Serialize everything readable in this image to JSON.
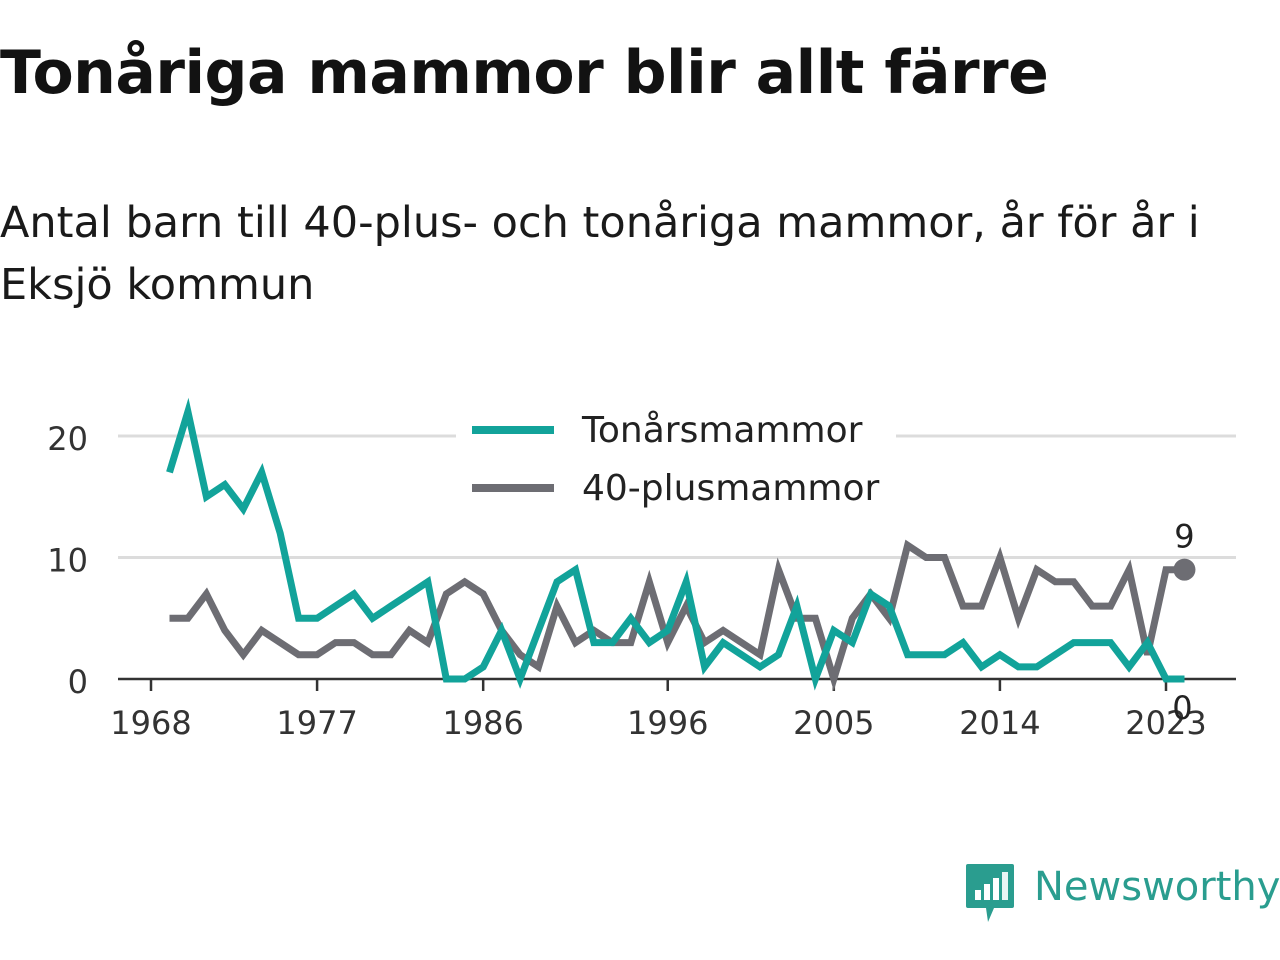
{
  "header": {
    "title": "Tonåriga mammor blir allt färre",
    "subtitle": "Antal barn till 40-plus- och tonåriga mammor, år för år i Eksjö kommun"
  },
  "brand": {
    "name": "Newsworthy",
    "color": "#2a9d8f"
  },
  "chart_data": {
    "type": "line",
    "x": [
      1969,
      1970,
      1971,
      1972,
      1973,
      1974,
      1975,
      1976,
      1977,
      1978,
      1979,
      1980,
      1981,
      1982,
      1983,
      1984,
      1985,
      1986,
      1987,
      1988,
      1989,
      1990,
      1991,
      1992,
      1993,
      1994,
      1995,
      1996,
      1997,
      1998,
      1999,
      2000,
      2001,
      2002,
      2003,
      2004,
      2005,
      2006,
      2007,
      2008,
      2009,
      2010,
      2011,
      2012,
      2013,
      2014,
      2015,
      2016,
      2017,
      2018,
      2019,
      2020,
      2021,
      2022,
      2023,
      2024
    ],
    "series": [
      {
        "name": "Tonårsmammor",
        "color": "#12a39a",
        "values": [
          17,
          22,
          15,
          16,
          14,
          17,
          12,
          5,
          5,
          6,
          7,
          5,
          6,
          7,
          8,
          0,
          0,
          1,
          4,
          0,
          4,
          8,
          9,
          3,
          3,
          5,
          3,
          4,
          8,
          1,
          3,
          2,
          1,
          2,
          6,
          0,
          4,
          3,
          7,
          6,
          2,
          2,
          2,
          3,
          1,
          2,
          1,
          1,
          2,
          3,
          3,
          3,
          1,
          3,
          0,
          0
        ]
      },
      {
        "name": "40-plusmammor",
        "color": "#6d6d73",
        "values": [
          5,
          5,
          7,
          4,
          2,
          4,
          3,
          2,
          2,
          3,
          3,
          2,
          2,
          4,
          3,
          7,
          8,
          7,
          4,
          2,
          1,
          6,
          3,
          4,
          3,
          3,
          8,
          3,
          6,
          3,
          4,
          3,
          2,
          9,
          5,
          5,
          0,
          5,
          7,
          5,
          11,
          10,
          10,
          6,
          6,
          10,
          5,
          9,
          8,
          8,
          6,
          6,
          9,
          2,
          9,
          9
        ]
      }
    ],
    "x_ticks": [
      "1968",
      "1977",
      "1986",
      "1996",
      "2005",
      "2014",
      "2023"
    ],
    "y_ticks": [
      "0",
      "10",
      "20"
    ],
    "ylim": [
      0,
      22
    ],
    "end_labels": {
      "40-plusmammor": "9",
      "Tonårsmammor": "0"
    },
    "legend_placement": "top-center",
    "grid": "horizontal"
  }
}
